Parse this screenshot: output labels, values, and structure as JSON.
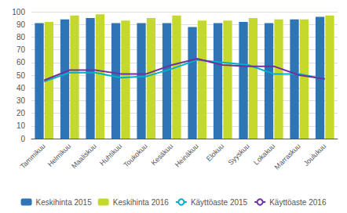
{
  "chart_data": {
    "type": "bar",
    "categories": [
      "Tammikuu",
      "Helmikuu",
      "Maaliskuu",
      "Huhtikuu",
      "Toukokuu",
      "Kesäkuu",
      "Heinäkuu",
      "Elokuu",
      "Syyskuu",
      "Lokakuu",
      "Marraskuu",
      "Joulukuu"
    ],
    "series": [
      {
        "name": "Keskihinta 2015",
        "type": "bar",
        "color": "#2E75B6",
        "values": [
          91,
          94,
          95,
          91,
          91,
          91,
          88,
          91,
          92,
          91,
          94,
          96
        ]
      },
      {
        "name": "Keskihinta 2016",
        "type": "bar",
        "color": "#C5D92D",
        "values": [
          92,
          97,
          98,
          93,
          95,
          97,
          93,
          93,
          95,
          94,
          94,
          97
        ]
      },
      {
        "name": "Käyttöaste 2015",
        "type": "line",
        "color": "#00B0C8",
        "values": [
          45,
          52,
          52,
          48,
          49,
          55,
          62,
          60,
          58,
          51,
          51,
          47
        ]
      },
      {
        "name": "Käyttöaste 2016",
        "type": "line",
        "color": "#7030A0",
        "values": [
          46,
          54,
          54,
          51,
          51,
          58,
          63,
          58,
          57,
          57,
          50,
          47
        ]
      }
    ],
    "ylim": [
      0,
      100
    ],
    "yticks": [
      0,
      10,
      20,
      30,
      40,
      50,
      60,
      70,
      80,
      90,
      100
    ],
    "grid": true,
    "legend": "bottom"
  }
}
